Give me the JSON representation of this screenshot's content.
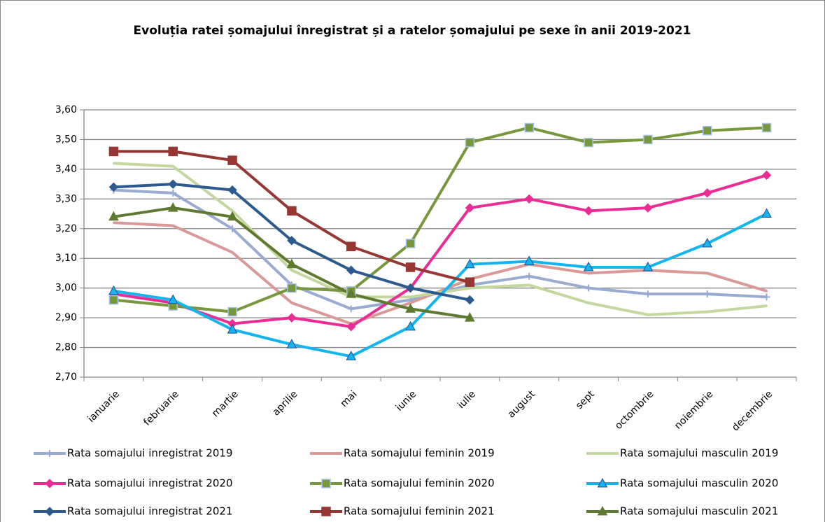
{
  "chart_data": {
    "type": "line",
    "title": "Evoluția ratei șomajului înregistrat și a ratelor șomajului pe sexe în anii 2019-2021",
    "categories": [
      "ianuarie",
      "februarie",
      "martie",
      "aprilie",
      "mai",
      "iunie",
      "iulie",
      "august",
      "sept",
      "octombrie",
      "noiembrie",
      "decembrie"
    ],
    "ylim": [
      2.7,
      3.6
    ],
    "yticks": [
      {
        "value": 2.7,
        "label": "2,70"
      },
      {
        "value": 2.8,
        "label": "2,80"
      },
      {
        "value": 2.9,
        "label": "2,90"
      },
      {
        "value": 3.0,
        "label": "3,00"
      },
      {
        "value": 3.1,
        "label": "3,10"
      },
      {
        "value": 3.2,
        "label": "3,20"
      },
      {
        "value": 3.3,
        "label": "3,30"
      },
      {
        "value": 3.4,
        "label": "3,40"
      },
      {
        "value": 3.5,
        "label": "3,50"
      },
      {
        "value": 3.6,
        "label": "3,60"
      }
    ],
    "grid": true,
    "legend": "bottom",
    "series": [
      {
        "name": "Rata somajului inregistrat 2019",
        "color": "#9aabd2",
        "marker": "plus",
        "values": [
          3.33,
          3.32,
          3.2,
          3.01,
          2.93,
          2.96,
          3.01,
          3.04,
          3.0,
          2.98,
          2.98,
          2.97
        ]
      },
      {
        "name": "Rata somajului feminin 2019",
        "color": "#d99a97",
        "marker": "none",
        "values": [
          3.22,
          3.21,
          3.12,
          2.95,
          2.88,
          2.95,
          3.03,
          3.08,
          3.05,
          3.06,
          3.05,
          2.99
        ]
      },
      {
        "name": "Rata somajului masculin 2019",
        "color": "#c4d79e",
        "marker": "none",
        "values": [
          3.42,
          3.41,
          3.26,
          3.06,
          2.97,
          2.97,
          3.0,
          3.01,
          2.95,
          2.91,
          2.92,
          2.94
        ]
      },
      {
        "name": "Rata somajului inregistrat 2020",
        "color": "#ea2c94",
        "marker": "diamond",
        "values": [
          2.98,
          2.95,
          2.88,
          2.9,
          2.87,
          3.0,
          3.27,
          3.3,
          3.26,
          3.27,
          3.32,
          3.38
        ]
      },
      {
        "name": "Rata somajului feminin 2020",
        "color": "#77973c",
        "marker": "square",
        "values": [
          2.96,
          2.94,
          2.92,
          3.0,
          2.99,
          3.15,
          3.49,
          3.54,
          3.49,
          3.5,
          3.53,
          3.54
        ]
      },
      {
        "name": "Rata somajului masculin 2020",
        "color": "#14b4ee",
        "marker": "triangle",
        "values": [
          2.99,
          2.96,
          2.86,
          2.81,
          2.77,
          2.87,
          3.08,
          3.09,
          3.07,
          3.07,
          3.15,
          3.25
        ]
      },
      {
        "name": "Rata somajului inregistrat 2021",
        "color": "#2d5a8e",
        "marker": "diamond",
        "values": [
          3.34,
          3.35,
          3.33,
          3.16,
          3.06,
          3.0,
          2.96,
          null,
          null,
          null,
          null,
          null
        ]
      },
      {
        "name": "Rata somajului feminin 2021",
        "color": "#973734",
        "marker": "square",
        "values": [
          3.46,
          3.46,
          3.43,
          3.26,
          3.14,
          3.07,
          3.02,
          null,
          null,
          null,
          null,
          null
        ]
      },
      {
        "name": "Rata somajului masculin 2021",
        "color": "#5e7a31",
        "marker": "triangle",
        "values": [
          3.24,
          3.27,
          3.24,
          3.08,
          2.98,
          2.93,
          2.9,
          null,
          null,
          null,
          null,
          null
        ]
      }
    ]
  }
}
